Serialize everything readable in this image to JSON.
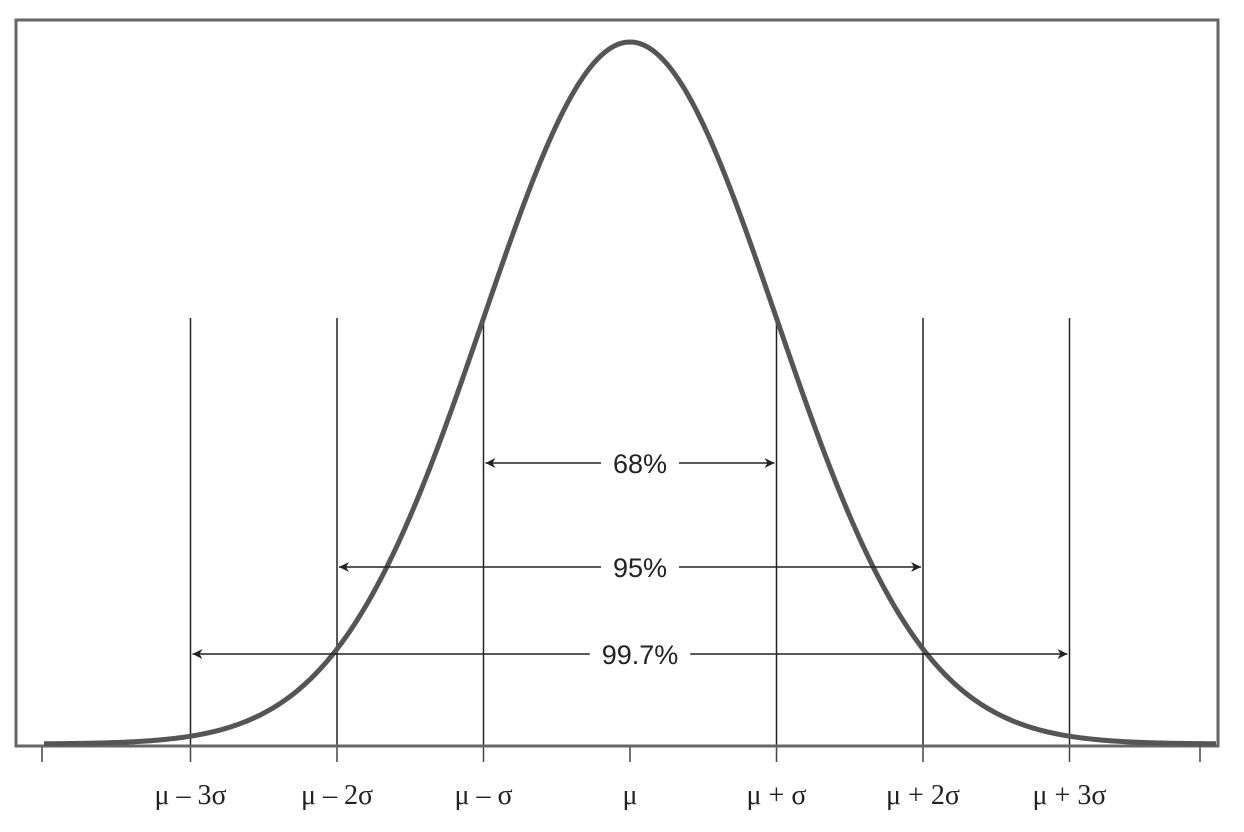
{
  "x_labels": [
    "μ – 3σ",
    "μ – 2σ",
    "μ – σ",
    "μ",
    "μ + σ",
    "μ + 2σ",
    "μ + 3σ"
  ],
  "intervals": [
    {
      "label": "68%"
    },
    {
      "label": "95%"
    },
    {
      "label": "99.7%"
    }
  ]
}
